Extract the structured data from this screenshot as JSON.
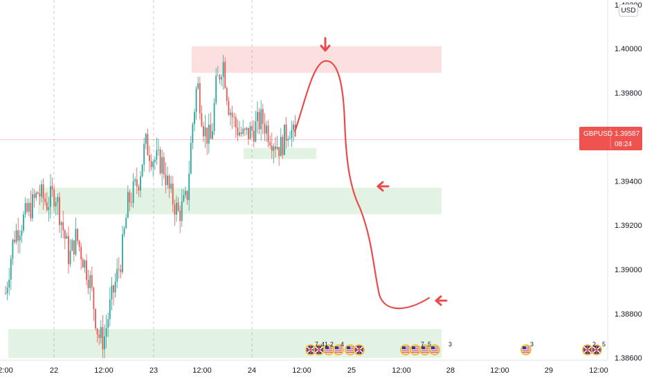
{
  "symbol": "GBPUSD",
  "currency": "USD",
  "current_price": "1.39587",
  "countdown": "08:24",
  "colors": {
    "up": "#26a69a",
    "down": "#ef5350",
    "supply_zone": "#ef5350",
    "demand_zone": "#4caf50",
    "annotation": "#e84b4b",
    "price_label": "#ef5350"
  },
  "chart_data": {
    "type": "candlestick",
    "y_axis": {
      "range": [
        1.3848,
        1.4025
      ],
      "ticks": [
        "1.38600",
        "1.38800",
        "1.39000",
        "1.39200",
        "1.39400",
        "1.39600",
        "1.39800",
        "1.40000"
      ],
      "top_partial": "1.40200"
    },
    "x_axis": {
      "ticks": [
        "2:00",
        "22",
        "12:00",
        "23",
        "12:00",
        "24",
        "12:00",
        "25",
        "12:00",
        "28",
        "12:00",
        "29",
        "12:00"
      ],
      "day_separators": [
        "22",
        "23",
        "24"
      ]
    },
    "current_price": 1.39587,
    "zones": [
      {
        "kind": "supply",
        "from": 1.3989,
        "to": 1.4001
      },
      {
        "kind": "demand",
        "from": 1.3925,
        "to": 1.3937
      },
      {
        "kind": "demand",
        "from": 1.386,
        "to": 1.3873
      },
      {
        "kind": "demand",
        "from": 1.395,
        "to": 1.3955
      }
    ],
    "projected_path": [
      [
        1.3961,
        0
      ],
      [
        1.3978,
        1
      ],
      [
        1.3992,
        2
      ],
      [
        1.3991,
        3
      ],
      [
        1.3975,
        4
      ],
      [
        1.3945,
        5
      ],
      [
        1.3922,
        6
      ],
      [
        1.39,
        7
      ],
      [
        1.388,
        8
      ],
      [
        1.3876,
        9
      ],
      [
        1.3877,
        10
      ],
      [
        1.388,
        11
      ]
    ],
    "arrows": [
      {
        "direction": "down",
        "price": 1.4
      },
      {
        "direction": "left",
        "price": 1.3935
      },
      {
        "direction": "left",
        "price": 1.388
      }
    ],
    "events": [
      {
        "flags": [
          "uk",
          "us"
        ],
        "count": "7"
      },
      {
        "flags": [
          "uk",
          "us"
        ],
        "count": "41"
      },
      {
        "flags": [
          "uk",
          "us"
        ],
        "count": "2"
      },
      {
        "flags": [
          "us",
          "us"
        ],
        "count": "4"
      },
      {
        "flags": [
          "uk"
        ],
        "count": ""
      },
      {
        "flags": [
          "us",
          "us"
        ],
        "count": "7"
      },
      {
        "flags": [
          "us",
          "us"
        ],
        "count": "5"
      },
      {
        "flags": [
          "us"
        ],
        "count": "3"
      },
      {
        "flags": [
          "us"
        ],
        "count": "3"
      },
      {
        "flags": [
          "uk"
        ],
        "count": "2"
      },
      {
        "flags": [
          "uk"
        ],
        "count": "5"
      }
    ]
  }
}
